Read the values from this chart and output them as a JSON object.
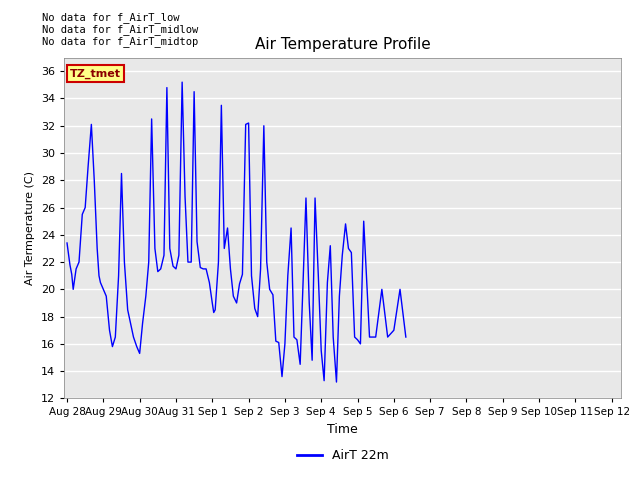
{
  "title": "Air Temperature Profile",
  "ylabel": "Air Termperature (C)",
  "xlabel": "Time",
  "legend_label": "AirT 22m",
  "line_color": "blue",
  "background_color": "#e8e8e8",
  "ylim": [
    12,
    37
  ],
  "yticks": [
    12,
    14,
    16,
    18,
    20,
    22,
    24,
    26,
    28,
    30,
    32,
    34,
    36
  ],
  "annotations": [
    "No data for f_AirT_low",
    "No data for f_AirT_midlow",
    "No data for f_AirT_midtop"
  ],
  "tz_label": "TZ_tmet",
  "data_points": [
    [
      0.0,
      23.4
    ],
    [
      0.08,
      21.8
    ],
    [
      0.13,
      21.1
    ],
    [
      0.17,
      20.0
    ],
    [
      0.25,
      21.5
    ],
    [
      0.33,
      22.0
    ],
    [
      0.42,
      25.5
    ],
    [
      0.5,
      26.0
    ],
    [
      0.58,
      29.0
    ],
    [
      0.67,
      32.1
    ],
    [
      0.75,
      28.0
    ],
    [
      0.83,
      23.0
    ],
    [
      0.88,
      21.0
    ],
    [
      0.92,
      20.5
    ],
    [
      1.0,
      20.0
    ],
    [
      1.08,
      19.5
    ],
    [
      1.17,
      17.0
    ],
    [
      1.25,
      15.8
    ],
    [
      1.33,
      16.5
    ],
    [
      1.42,
      21.0
    ],
    [
      1.5,
      28.5
    ],
    [
      1.58,
      22.0
    ],
    [
      1.67,
      18.5
    ],
    [
      1.75,
      17.5
    ],
    [
      1.83,
      16.5
    ],
    [
      1.92,
      15.8
    ],
    [
      2.0,
      15.3
    ],
    [
      2.08,
      17.5
    ],
    [
      2.17,
      19.5
    ],
    [
      2.25,
      22.0
    ],
    [
      2.33,
      32.5
    ],
    [
      2.42,
      23.0
    ],
    [
      2.5,
      21.3
    ],
    [
      2.58,
      21.5
    ],
    [
      2.67,
      22.5
    ],
    [
      2.75,
      34.8
    ],
    [
      2.83,
      23.0
    ],
    [
      2.92,
      21.7
    ],
    [
      3.0,
      21.5
    ],
    [
      3.08,
      22.5
    ],
    [
      3.17,
      35.2
    ],
    [
      3.25,
      26.8
    ],
    [
      3.33,
      22.0
    ],
    [
      3.42,
      22.0
    ],
    [
      3.5,
      34.5
    ],
    [
      3.58,
      23.5
    ],
    [
      3.67,
      21.6
    ],
    [
      3.75,
      21.5
    ],
    [
      3.83,
      21.5
    ],
    [
      3.92,
      20.5
    ],
    [
      4.0,
      19.0
    ],
    [
      4.04,
      18.3
    ],
    [
      4.08,
      18.5
    ],
    [
      4.17,
      22.0
    ],
    [
      4.25,
      33.5
    ],
    [
      4.33,
      23.0
    ],
    [
      4.42,
      24.5
    ],
    [
      4.5,
      21.5
    ],
    [
      4.58,
      19.5
    ],
    [
      4.67,
      19.0
    ],
    [
      4.75,
      20.4
    ],
    [
      4.83,
      21.1
    ],
    [
      4.92,
      32.1
    ],
    [
      5.0,
      32.2
    ],
    [
      5.08,
      21.0
    ],
    [
      5.17,
      18.6
    ],
    [
      5.25,
      18.0
    ],
    [
      5.33,
      21.5
    ],
    [
      5.42,
      32.0
    ],
    [
      5.5,
      22.0
    ],
    [
      5.58,
      20.0
    ],
    [
      5.67,
      19.6
    ],
    [
      5.75,
      16.2
    ],
    [
      5.83,
      16.1
    ],
    [
      5.92,
      13.6
    ],
    [
      6.0,
      16.0
    ],
    [
      6.08,
      21.0
    ],
    [
      6.17,
      24.5
    ],
    [
      6.25,
      16.5
    ],
    [
      6.33,
      16.3
    ],
    [
      6.42,
      14.5
    ],
    [
      6.5,
      20.5
    ],
    [
      6.58,
      26.7
    ],
    [
      6.67,
      19.0
    ],
    [
      6.75,
      14.8
    ],
    [
      6.83,
      26.7
    ],
    [
      6.92,
      21.0
    ],
    [
      7.0,
      15.5
    ],
    [
      7.08,
      13.3
    ],
    [
      7.17,
      20.5
    ],
    [
      7.25,
      23.2
    ],
    [
      7.33,
      16.5
    ],
    [
      7.42,
      13.2
    ],
    [
      7.5,
      19.5
    ],
    [
      7.58,
      22.5
    ],
    [
      7.67,
      24.8
    ],
    [
      7.75,
      23.0
    ],
    [
      7.83,
      22.7
    ],
    [
      7.92,
      16.5
    ],
    [
      8.0,
      16.3
    ],
    [
      8.08,
      16.0
    ],
    [
      8.17,
      25.0
    ],
    [
      8.33,
      16.5
    ],
    [
      8.5,
      16.5
    ],
    [
      8.67,
      20.0
    ],
    [
      8.83,
      16.5
    ],
    [
      9.0,
      17.0
    ],
    [
      9.17,
      20.0
    ],
    [
      9.33,
      16.5
    ]
  ]
}
